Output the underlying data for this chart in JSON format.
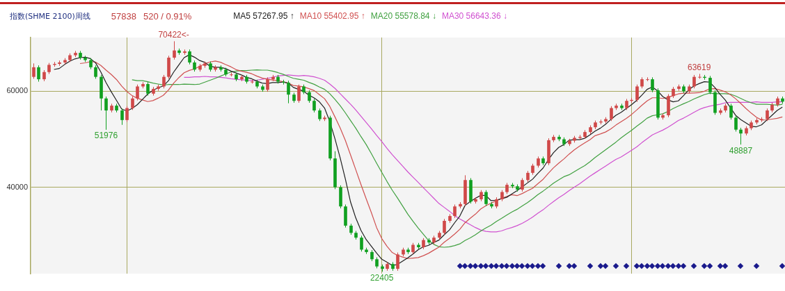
{
  "chart_data": {
    "type": "candlestick",
    "title": "指数(SHME 2100)周线",
    "categories": [
      null,
      null,
      null,
      null,
      null,
      null,
      null,
      null,
      null,
      null,
      null,
      null,
      null,
      null,
      null,
      null,
      null,
      null,
      null,
      null,
      null,
      null,
      null,
      null,
      null,
      null,
      null,
      null,
      null,
      null,
      null,
      null,
      null,
      null,
      null,
      null,
      null,
      null,
      null,
      null,
      null,
      null,
      null,
      null,
      null,
      null,
      null,
      null,
      null,
      null,
      null,
      null,
      null,
      null,
      null,
      null,
      null,
      null,
      null,
      null,
      null,
      null,
      null,
      null,
      null,
      null,
      null,
      null,
      null,
      null,
      null,
      null,
      null,
      null,
      null,
      null,
      null,
      null,
      null,
      null,
      null,
      null,
      null,
      null,
      null,
      null,
      null,
      null,
      null,
      null,
      null,
      null,
      null,
      null,
      null,
      null,
      null,
      null,
      null,
      null,
      null,
      null,
      null,
      null,
      null,
      null,
      null,
      null,
      null,
      null,
      null,
      null,
      null,
      null,
      null,
      null,
      null,
      null,
      null,
      null,
      null,
      null,
      null,
      null,
      null,
      null,
      null,
      null,
      null,
      null,
      null,
      null,
      null,
      null,
      null,
      null,
      null,
      null,
      null,
      null,
      null,
      null,
      null,
      null,
      null
    ],
    "ohlc": [
      [
        63000,
        65800,
        62600,
        65000
      ],
      [
        65000,
        65400,
        62000,
        62500
      ],
      [
        62500,
        64400,
        62100,
        64000
      ],
      [
        64000,
        65900,
        63600,
        65500
      ],
      [
        65500,
        66100,
        65100,
        65700
      ],
      [
        65700,
        66400,
        65300,
        66000
      ],
      [
        66000,
        66900,
        65600,
        66500
      ],
      [
        66500,
        67900,
        66100,
        67500
      ],
      [
        67500,
        68400,
        67100,
        68000
      ],
      [
        68000,
        68400,
        66600,
        67000
      ],
      [
        67000,
        67400,
        66100,
        66500
      ],
      [
        66500,
        66900,
        64600,
        65000
      ],
      [
        65000,
        65400,
        62600,
        63000
      ],
      [
        63000,
        63400,
        56000,
        58500
      ],
      [
        58500,
        58900,
        51976,
        56000
      ],
      [
        56000,
        57400,
        55600,
        57000
      ],
      [
        57000,
        57400,
        55600,
        56000
      ],
      [
        56000,
        56400,
        53000,
        54000
      ],
      [
        54000,
        56900,
        53600,
        56500
      ],
      [
        56500,
        58900,
        56100,
        58500
      ],
      [
        58500,
        61400,
        58100,
        61000
      ],
      [
        61000,
        61900,
        60600,
        61500
      ],
      [
        61500,
        61900,
        59100,
        59500
      ],
      [
        59500,
        60900,
        59100,
        60500
      ],
      [
        60500,
        61400,
        60100,
        61000
      ],
      [
        61000,
        63400,
        60600,
        63000
      ],
      [
        63000,
        67400,
        62600,
        67000
      ],
      [
        67000,
        70422,
        66600,
        68500
      ],
      [
        68500,
        68900,
        67600,
        68000
      ],
      [
        68000,
        68700,
        67600,
        68300
      ],
      [
        68300,
        68700,
        65600,
        66000
      ],
      [
        66000,
        66400,
        64100,
        64500
      ],
      [
        64500,
        65700,
        64100,
        65300
      ],
      [
        65300,
        66200,
        64900,
        65800
      ],
      [
        65800,
        66200,
        64100,
        64500
      ],
      [
        64500,
        65400,
        64100,
        65000
      ],
      [
        65000,
        65400,
        64100,
        64500
      ],
      [
        64500,
        64900,
        63100,
        63500
      ],
      [
        63500,
        63900,
        63100,
        63500
      ],
      [
        63500,
        63900,
        62100,
        62500
      ],
      [
        62500,
        63400,
        62100,
        63000
      ],
      [
        63000,
        63400,
        61600,
        62000
      ],
      [
        62000,
        62400,
        61600,
        62000
      ],
      [
        62000,
        62400,
        60600,
        61000
      ],
      [
        61000,
        61400,
        59900,
        60300
      ],
      [
        60300,
        62900,
        59900,
        62500
      ],
      [
        62500,
        63400,
        62100,
        63000
      ],
      [
        63000,
        63400,
        61600,
        62000
      ],
      [
        62000,
        62400,
        61400,
        61800
      ],
      [
        61800,
        62200,
        57500,
        59300
      ],
      [
        59300,
        59700,
        57600,
        58000
      ],
      [
        58000,
        61400,
        57600,
        61000
      ],
      [
        61000,
        61400,
        59400,
        59800
      ],
      [
        59800,
        60200,
        57600,
        58000
      ],
      [
        58000,
        58400,
        55600,
        56000
      ],
      [
        56000,
        56400,
        53800,
        54200
      ],
      [
        54200,
        54900,
        53800,
        54500
      ],
      [
        54500,
        54900,
        45600,
        46000
      ],
      [
        46000,
        47500,
        39600,
        40000
      ],
      [
        40000,
        40400,
        35600,
        36000
      ],
      [
        36000,
        36400,
        31600,
        32000
      ],
      [
        32000,
        32400,
        30100,
        30500
      ],
      [
        30500,
        30900,
        29100,
        29500
      ],
      [
        29500,
        29900,
        26600,
        27000
      ],
      [
        27000,
        27400,
        26100,
        26500
      ],
      [
        26500,
        26900,
        24600,
        25000
      ],
      [
        25000,
        25400,
        23100,
        23500
      ],
      [
        23500,
        23900,
        22405,
        23000
      ],
      [
        23000,
        24400,
        22600,
        24000
      ],
      [
        24000,
        24400,
        22600,
        23000
      ],
      [
        23000,
        26400,
        22600,
        26000
      ],
      [
        26000,
        27400,
        25600,
        27000
      ],
      [
        27000,
        27400,
        26100,
        26500
      ],
      [
        26500,
        28400,
        26100,
        28000
      ],
      [
        28000,
        28400,
        27100,
        27500
      ],
      [
        27500,
        29400,
        27100,
        29000
      ],
      [
        29000,
        29400,
        28100,
        28500
      ],
      [
        28500,
        29900,
        28100,
        29500
      ],
      [
        29500,
        30900,
        29100,
        30500
      ],
      [
        30500,
        33400,
        30100,
        33000
      ],
      [
        33000,
        34400,
        32600,
        34000
      ],
      [
        34000,
        36400,
        33600,
        36000
      ],
      [
        36000,
        36900,
        35600,
        36500
      ],
      [
        36500,
        42500,
        36100,
        41500
      ],
      [
        41500,
        41900,
        36600,
        37000
      ],
      [
        37000,
        37900,
        36600,
        37500
      ],
      [
        37500,
        39400,
        37100,
        39000
      ],
      [
        39000,
        39400,
        36100,
        36500
      ],
      [
        36500,
        36900,
        35600,
        36000
      ],
      [
        36000,
        37900,
        35600,
        37500
      ],
      [
        37500,
        39400,
        37100,
        39000
      ],
      [
        39000,
        40900,
        38600,
        40500
      ],
      [
        40500,
        40900,
        39800,
        40200
      ],
      [
        40200,
        40600,
        39100,
        39500
      ],
      [
        39500,
        41900,
        39100,
        41500
      ],
      [
        41500,
        43400,
        41100,
        43000
      ],
      [
        43000,
        44900,
        42600,
        44500
      ],
      [
        44500,
        46400,
        44100,
        46000
      ],
      [
        46000,
        46400,
        44600,
        45000
      ],
      [
        45000,
        50200,
        44600,
        49800
      ],
      [
        49800,
        50900,
        49400,
        50500
      ],
      [
        50500,
        50900,
        49600,
        50000
      ],
      [
        50000,
        50400,
        48600,
        49000
      ],
      [
        49000,
        50100,
        48600,
        49700
      ],
      [
        49700,
        50700,
        49300,
        50300
      ],
      [
        50300,
        50900,
        49900,
        50500
      ],
      [
        50500,
        51900,
        50100,
        51500
      ],
      [
        51500,
        52900,
        51100,
        52500
      ],
      [
        52500,
        53900,
        52100,
        53500
      ],
      [
        53500,
        54100,
        53100,
        53700
      ],
      [
        53700,
        54600,
        53300,
        54200
      ],
      [
        54200,
        56900,
        53800,
        56500
      ],
      [
        56500,
        57400,
        56100,
        57000
      ],
      [
        57000,
        57400,
        56100,
        56500
      ],
      [
        56500,
        58400,
        56100,
        58000
      ],
      [
        58000,
        58600,
        57600,
        58200
      ],
      [
        58200,
        61400,
        57800,
        61000
      ],
      [
        61000,
        62900,
        60600,
        62500
      ],
      [
        62500,
        62900,
        62100,
        62500
      ],
      [
        62500,
        62900,
        59800,
        60200
      ],
      [
        60200,
        60600,
        54100,
        54500
      ],
      [
        54500,
        55400,
        54100,
        55000
      ],
      [
        55000,
        59400,
        54600,
        59000
      ],
      [
        59000,
        60900,
        58600,
        60500
      ],
      [
        60500,
        61400,
        60100,
        61000
      ],
      [
        61000,
        61400,
        59600,
        60000
      ],
      [
        60000,
        61400,
        59600,
        61000
      ],
      [
        61000,
        63400,
        60600,
        63000
      ],
      [
        63000,
        63619,
        62600,
        63000
      ],
      [
        63000,
        63400,
        62400,
        62800
      ],
      [
        62800,
        63200,
        59400,
        59800
      ],
      [
        59800,
        60200,
        55100,
        55500
      ],
      [
        55500,
        56400,
        55100,
        56000
      ],
      [
        56000,
        57400,
        55600,
        57000
      ],
      [
        57000,
        57400,
        54100,
        54500
      ],
      [
        54500,
        54900,
        51600,
        52000
      ],
      [
        52000,
        52400,
        48887,
        51200
      ],
      [
        51200,
        52700,
        50800,
        52300
      ],
      [
        52300,
        53900,
        51900,
        53500
      ],
      [
        53500,
        54400,
        53100,
        54000
      ],
      [
        54000,
        54600,
        53600,
        54200
      ],
      [
        54200,
        56400,
        53800,
        56000
      ],
      [
        56000,
        57600,
        55600,
        57200
      ],
      [
        57200,
        58900,
        56800,
        58500
      ],
      [
        58500,
        58900,
        57400,
        57838
      ]
    ],
    "series": [
      {
        "type": "line",
        "name": "MA5 57267.95 ↑",
        "color": "#202020",
        "values": [
          null,
          null,
          null,
          null,
          64540,
          64740,
          65540,
          66240,
          66740,
          67000,
          67100,
          66800,
          65900,
          64000,
          61800,
          59900,
          58100,
          56300,
          55900,
          56400,
          57200,
          58300,
          59400,
          60200,
          60700,
          61100,
          62200,
          64000,
          65500,
          67000,
          67600,
          67100,
          66400,
          66000,
          65200,
          65000,
          65000,
          64700,
          64200,
          63800,
          63400,
          62900,
          62600,
          62100,
          61700,
          61600,
          61800,
          61800,
          61900,
          61700,
          60800,
          60400,
          60000,
          59200,
          58600,
          57800,
          56500,
          53700,
          50100,
          46100,
          41700,
          36900,
          33600,
          31000,
          29100,
          27700,
          26300,
          25000,
          24400,
          23700,
          23900,
          24600,
          25300,
          26100,
          27000,
          27600,
          27900,
          28500,
          29000,
          30100,
          31100,
          32600,
          34000,
          36200,
          37000,
          37700,
          38300,
          38300,
          37200,
          37300,
          37600,
          37900,
          38600,
          39300,
          40100,
          40900,
          41700,
          42900,
          44000,
          45700,
          47200,
          48300,
          48900,
          49800,
          49900,
          49900,
          50200,
          50900,
          51700,
          52300,
          53100,
          54100,
          55000,
          55600,
          56400,
          57200,
          58100,
          59200,
          60400,
          60900,
          60100,
          58900,
          58200,
          57800,
          58000,
          59100,
          60300,
          61100,
          61600,
          62000,
          61900,
          60800,
          59400,
          58200,
          56600,
          55000,
          54100,
          53400,
          52700,
          52600,
          53000,
          54000,
          55000,
          56000,
          56700
        ]
      },
      {
        "type": "line",
        "name": "MA10 55402.95 ↑",
        "color": "#d05050",
        "values": [
          null,
          null,
          null,
          null,
          null,
          null,
          null,
          null,
          null,
          65770,
          65920,
          66170,
          66070,
          65370,
          64400,
          63500,
          62450,
          61100,
          59950,
          59100,
          58550,
          58200,
          57850,
          58050,
          58550,
          59150,
          60250,
          61700,
          62850,
          63850,
          64350,
          64650,
          65200,
          65750,
          66100,
          66300,
          66050,
          65550,
          65100,
          64500,
          64200,
          63950,
          63650,
          63150,
          62750,
          62500,
          62350,
          62200,
          62000,
          61700,
          61200,
          61100,
          60900,
          60550,
          60150,
          59300,
          58450,
          56850,
          54650,
          52350,
          49750,
          46700,
          43650,
          40550,
          37600,
          34700,
          31600,
          29300,
          27700,
          26400,
          25800,
          25450,
          25150,
          25250,
          25350,
          25750,
          26250,
          26900,
          27550,
          28550,
          29350,
          30250,
          31250,
          32600,
          33550,
          34400,
          35450,
          36150,
          36700,
          37150,
          37650,
          38100,
          38450,
          38250,
          38700,
          39250,
          39800,
          40750,
          41650,
          42900,
          44050,
          45000,
          45900,
          46900,
          47800,
          48550,
          49250,
          49900,
          50750,
          51100,
          51500,
          52150,
          52950,
          53650,
          54350,
          55150,
          56100,
          57100,
          58000,
          58650,
          58650,
          58500,
          58700,
          59100,
          59450,
          59600,
          59600,
          59650,
          59700,
          60000,
          60500,
          60550,
          60250,
          59900,
          59300,
          58450,
          57450,
          56400,
          55450,
          54600,
          54000,
          54050,
          54200,
          54350,
          54650
        ]
      },
      {
        "type": "line",
        "name": "MA20 55578.84 ↓",
        "color": "#40a040",
        "values": [
          null,
          null,
          null,
          null,
          null,
          null,
          null,
          null,
          null,
          null,
          null,
          null,
          null,
          null,
          null,
          null,
          null,
          null,
          null,
          62400,
          62200,
          62200,
          62000,
          61700,
          61500,
          61300,
          61400,
          61400,
          61400,
          61500,
          61450,
          61400,
          61500,
          61900,
          62300,
          62700,
          63150,
          63600,
          64000,
          64200,
          64300,
          64300,
          64400,
          64450,
          64400,
          64400,
          64200,
          63900,
          63550,
          63100,
          62700,
          62500,
          62300,
          61850,
          61450,
          60900,
          60400,
          59500,
          58300,
          57000,
          55500,
          53900,
          52300,
          50550,
          48900,
          47000,
          45000,
          43100,
          41200,
          39400,
          37800,
          36100,
          34400,
          32900,
          31500,
          30200,
          28900,
          28100,
          27600,
          27500,
          27600,
          27850,
          28200,
          28900,
          29450,
          30100,
          30850,
          31500,
          32100,
          32850,
          33500,
          34200,
          34850,
          35400,
          36100,
          36800,
          37600,
          38450,
          39200,
          40000,
          40850,
          41550,
          42200,
          42600,
          43250,
          43900,
          44500,
          45300,
          46200,
          47000,
          47800,
          48600,
          49400,
          50300,
          51100,
          51850,
          52700,
          53500,
          54400,
          54900,
          55100,
          55300,
          55800,
          56400,
          56900,
          57400,
          57850,
          58400,
          58850,
          59300,
          59600,
          59500,
          59500,
          59500,
          59400,
          59000,
          58500,
          58000,
          57600,
          57300,
          57300,
          57300,
          57200,
          57100,
          57300
        ]
      },
      {
        "type": "line",
        "name": "MA30 56643.36 ↓",
        "color": "#d050d0",
        "values": [
          null,
          null,
          null,
          null,
          null,
          null,
          null,
          null,
          null,
          null,
          null,
          null,
          null,
          null,
          null,
          null,
          null,
          null,
          null,
          null,
          null,
          null,
          null,
          null,
          null,
          null,
          null,
          null,
          null,
          62900,
          62900,
          63000,
          63000,
          63100,
          63000,
          63000,
          62900,
          62800,
          62600,
          62500,
          62400,
          62300,
          62200,
          62300,
          62500,
          62700,
          62900,
          63200,
          63300,
          63400,
          63300,
          63200,
          63300,
          63200,
          63000,
          62700,
          62300,
          61500,
          60600,
          59500,
          58400,
          57300,
          56100,
          54800,
          53500,
          52200,
          50800,
          49500,
          48100,
          46800,
          45600,
          44400,
          43200,
          42100,
          41000,
          39900,
          38800,
          37700,
          36600,
          35800,
          35000,
          34100,
          33400,
          32800,
          32200,
          31600,
          31100,
          30800,
          30700,
          30700,
          30900,
          31300,
          31600,
          32000,
          32500,
          33100,
          33800,
          34600,
          35300,
          36200,
          37000,
          37800,
          38500,
          39300,
          40000,
          40700,
          41500,
          42300,
          43000,
          43700,
          44400,
          45100,
          45800,
          46300,
          47000,
          47700,
          48400,
          49300,
          50100,
          50900,
          51400,
          51900,
          52500,
          53200,
          53900,
          54400,
          55000,
          55600,
          56200,
          56600,
          56900,
          57100,
          57300,
          57600,
          57700,
          57700,
          57700,
          57700,
          57700,
          57800,
          57700,
          57700,
          57700,
          57800,
          57800
        ]
      }
    ],
    "ylim": [
      22000,
      71200
    ],
    "yticks": [
      40000,
      60000
    ],
    "tick_labels": "y",
    "grid": true,
    "annotations": [
      "57838",
      "520 / 0.91%",
      {
        "text": "70422<-",
        "y": 70422
      },
      {
        "text": "51976",
        "y": 51976
      },
      {
        "text": "22405",
        "y": 22405
      },
      {
        "text": "63619",
        "y": 63619
      },
      {
        "text": "48887",
        "y": 48887
      }
    ]
  }
}
